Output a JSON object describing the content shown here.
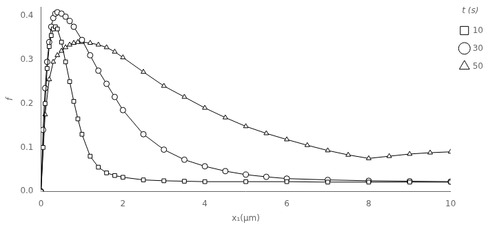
{
  "chart_data": {
    "type": "line",
    "xlabel": "x₁(μm)",
    "ylabel": "f",
    "legend_title": "t (s)",
    "xlim": [
      0,
      10
    ],
    "ylim": [
      0.0,
      0.42
    ],
    "xticks": [
      0,
      2,
      4,
      6,
      8,
      10
    ],
    "yticks": [
      {
        "value": 0.0,
        "label": "0.0"
      },
      0.1,
      0.2,
      0.3,
      0.4
    ],
    "grid": false,
    "legend": "right",
    "series": [
      {
        "name": "10",
        "color": "#000000",
        "marker": "square",
        "line_style": "solid",
        "x": [
          0.0,
          0.05,
          0.1,
          0.15,
          0.2,
          0.25,
          0.3,
          0.35,
          0.4,
          0.5,
          0.6,
          0.7,
          0.8,
          0.9,
          1.0,
          1.2,
          1.4,
          1.6,
          1.8,
          2.0,
          2.5,
          3.0,
          3.5,
          4.0,
          5.0,
          6.0,
          7.0,
          8.0,
          9.0,
          10.0
        ],
        "values": [
          0.0,
          0.1,
          0.2,
          0.28,
          0.33,
          0.355,
          0.37,
          0.375,
          0.37,
          0.34,
          0.295,
          0.25,
          0.205,
          0.165,
          0.13,
          0.08,
          0.055,
          0.042,
          0.036,
          0.032,
          0.026,
          0.024,
          0.023,
          0.022,
          0.022,
          0.022,
          0.021,
          0.021,
          0.021,
          0.021
        ]
      },
      {
        "name": "30",
        "color": "#000000",
        "marker": "circle",
        "line_style": "solid",
        "x": [
          0.0,
          0.05,
          0.1,
          0.15,
          0.2,
          0.25,
          0.3,
          0.35,
          0.4,
          0.5,
          0.6,
          0.7,
          0.8,
          1.0,
          1.2,
          1.4,
          1.6,
          1.8,
          2.0,
          2.5,
          3.0,
          3.5,
          4.0,
          4.5,
          5.0,
          5.5,
          6.0,
          7.0,
          8.0,
          9.0,
          10.0
        ],
        "values": [
          0.0,
          0.14,
          0.235,
          0.295,
          0.34,
          0.375,
          0.395,
          0.405,
          0.408,
          0.405,
          0.398,
          0.388,
          0.375,
          0.345,
          0.31,
          0.275,
          0.245,
          0.215,
          0.185,
          0.13,
          0.095,
          0.072,
          0.057,
          0.046,
          0.038,
          0.033,
          0.029,
          0.026,
          0.024,
          0.023,
          0.022
        ]
      },
      {
        "name": "50",
        "color": "#000000",
        "marker": "triangle",
        "line_style": "solid",
        "x": [
          0.0,
          0.1,
          0.2,
          0.3,
          0.4,
          0.5,
          0.6,
          0.7,
          0.8,
          0.9,
          1.0,
          1.2,
          1.4,
          1.6,
          1.8,
          2.0,
          2.5,
          3.0,
          3.5,
          4.0,
          4.5,
          5.0,
          5.5,
          6.0,
          6.5,
          7.0,
          7.5,
          8.0,
          8.5,
          9.0,
          9.5,
          10.0
        ],
        "values": [
          0.0,
          0.175,
          0.255,
          0.295,
          0.31,
          0.32,
          0.328,
          0.334,
          0.338,
          0.34,
          0.34,
          0.338,
          0.334,
          0.328,
          0.318,
          0.305,
          0.272,
          0.24,
          0.215,
          0.19,
          0.168,
          0.148,
          0.132,
          0.118,
          0.105,
          0.093,
          0.083,
          0.075,
          0.08,
          0.085,
          0.088,
          0.09
        ]
      }
    ]
  }
}
